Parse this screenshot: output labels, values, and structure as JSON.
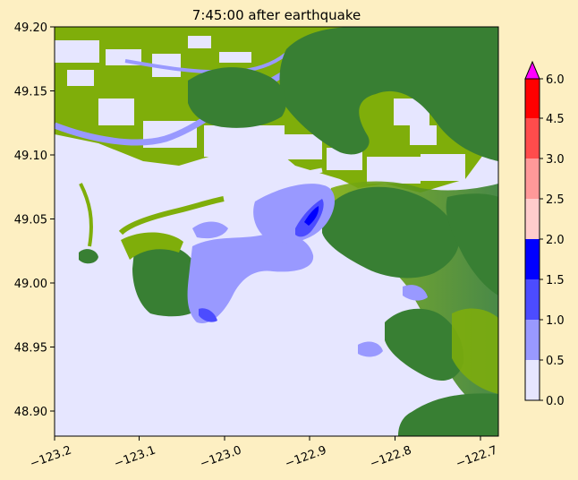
{
  "title": "7:45:00 after earthquake",
  "map": {
    "x_ticks": [
      "−123.2",
      "−123.1",
      "−123.0",
      "−122.9",
      "−122.8",
      "−122.7"
    ],
    "y_ticks": [
      "49.20",
      "49.15",
      "49.10",
      "49.05",
      "49.00",
      "48.95",
      "48.90"
    ],
    "x_range": [
      -123.2,
      -122.68
    ],
    "y_range": [
      48.88,
      49.2
    ],
    "colors": {
      "land_light": "#7fae0a",
      "land_dark": "#387f33",
      "water_zero": "#e6e6ff",
      "background": "#fdefc2"
    }
  },
  "colorbar": {
    "tick_labels": [
      "0.0",
      "0.5",
      "1.0",
      "1.5",
      "2.0",
      "2.5",
      "3.0",
      "4.5",
      "6.0"
    ],
    "bands": [
      "#e6e6ff",
      "#9999ff",
      "#4c4cff",
      "#0000ff",
      "#ffcccc",
      "#ff9999",
      "#ff4c4c",
      "#ff0000"
    ],
    "over_color": "#ff00ff"
  }
}
